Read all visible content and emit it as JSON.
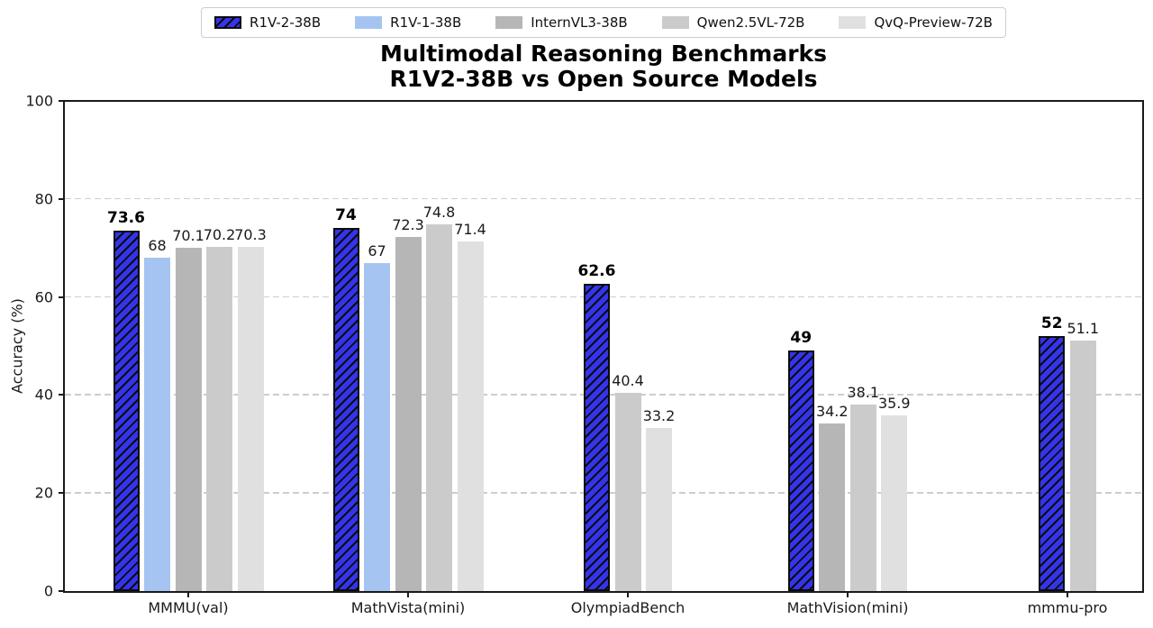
{
  "chart_data": {
    "type": "bar",
    "title_line1": "Multimodal Reasoning Benchmarks",
    "title_line2": "R1V2-38B vs Open Source Models",
    "ylabel": "Accuracy (%)",
    "ylim": [
      0,
      100
    ],
    "yticks": [
      0,
      20,
      40,
      60,
      80,
      100
    ],
    "grid": "horizontal dashed",
    "legend_position": "top center outside",
    "categories": [
      "MMMU(val)",
      "MathVista(mini)",
      "OlympiadBench",
      "MathVision(mini)",
      "mmmu-pro"
    ],
    "series": [
      {
        "name": "R1V-2-38B",
        "color": "#3434eb",
        "hatch": "//",
        "emphasis": true,
        "values": [
          73.6,
          74,
          62.6,
          49,
          52
        ]
      },
      {
        "name": "R1V-1-38B",
        "color": "#a6c4f2",
        "hatch": null,
        "emphasis": false,
        "values": [
          68,
          67,
          null,
          null,
          null
        ]
      },
      {
        "name": "InternVL3-38B",
        "color": "#b6b6b6",
        "hatch": null,
        "emphasis": false,
        "values": [
          70.1,
          72.3,
          null,
          34.2,
          null
        ]
      },
      {
        "name": "Qwen2.5VL-72B",
        "color": "#cbcbcb",
        "hatch": null,
        "emphasis": false,
        "values": [
          70.2,
          74.8,
          40.4,
          38.1,
          51.1
        ]
      },
      {
        "name": "QvQ-Preview-72B",
        "color": "#e0e0e0",
        "hatch": null,
        "emphasis": false,
        "values": [
          70.3,
          71.4,
          33.2,
          35.9,
          null
        ]
      }
    ]
  }
}
